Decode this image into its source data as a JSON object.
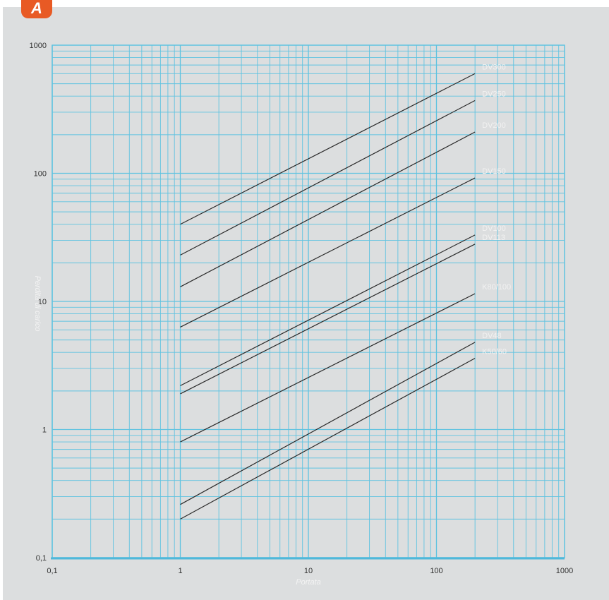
{
  "badge": {
    "label": "A"
  },
  "chart_data": {
    "type": "line",
    "title": "",
    "xlabel": "Portata",
    "ylabel": "Perdita di carico",
    "xscale": "log",
    "yscale": "log",
    "xlim": [
      0.1,
      1000
    ],
    "ylim": [
      0.1,
      1000
    ],
    "x_ticks": [
      "0,1",
      "1",
      "10",
      "100",
      "1000"
    ],
    "y_ticks": [
      "0,1",
      "1",
      "10",
      "100",
      "1000"
    ],
    "grid": true,
    "colors": {
      "background": "#dcdedf",
      "grid": "#5fc3e0",
      "line": "#2a2a2a"
    },
    "series": [
      {
        "name": "DV300",
        "points": [
          [
            1,
            40
          ],
          [
            200,
            600
          ]
        ]
      },
      {
        "name": "DV250",
        "points": [
          [
            1,
            23
          ],
          [
            200,
            370
          ]
        ]
      },
      {
        "name": "DV200",
        "points": [
          [
            1,
            13
          ],
          [
            200,
            210
          ]
        ]
      },
      {
        "name": "DV150",
        "points": [
          [
            1,
            6.3
          ],
          [
            200,
            92
          ]
        ]
      },
      {
        "name": "DV100",
        "points": [
          [
            1,
            2.2
          ],
          [
            200,
            33
          ]
        ]
      },
      {
        "name": "DV113",
        "points": [
          [
            1,
            1.9
          ],
          [
            200,
            28
          ]
        ]
      },
      {
        "name": "K80/100",
        "points": [
          [
            1,
            0.8
          ],
          [
            200,
            11.5
          ]
        ]
      },
      {
        "name": "DV48",
        "points": [
          [
            1,
            0.26
          ],
          [
            200,
            4.8
          ]
        ]
      },
      {
        "name": "K50/60",
        "points": [
          [
            1,
            0.2
          ],
          [
            200,
            3.6
          ]
        ]
      }
    ]
  }
}
